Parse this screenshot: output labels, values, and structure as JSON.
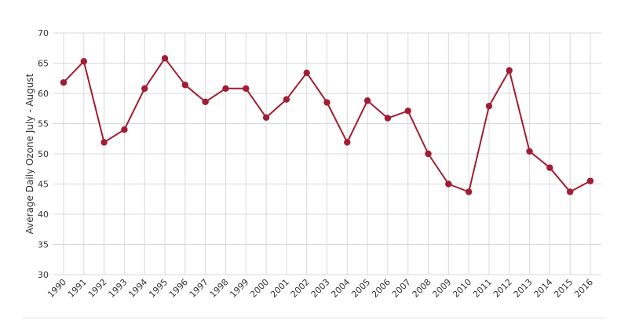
{
  "chart_data": {
    "type": "line",
    "title": "",
    "xlabel": "",
    "ylabel": "Average Daily Ozone July - August",
    "ylim": [
      30,
      70
    ],
    "yticks": [
      30,
      35,
      40,
      45,
      50,
      55,
      60,
      65,
      70
    ],
    "grid": "both",
    "categories": [
      "1990",
      "1991",
      "1992",
      "1993",
      "1994",
      "1995",
      "1996",
      "1997",
      "1998",
      "1999",
      "2000",
      "2001",
      "2002",
      "2003",
      "2004",
      "2005",
      "2006",
      "2007",
      "2008",
      "2009",
      "2010",
      "2011",
      "2012",
      "2013",
      "2014",
      "2015",
      "2016"
    ],
    "series": [
      {
        "values": [
          61.8,
          65.3,
          51.9,
          54.0,
          60.8,
          65.8,
          61.4,
          58.6,
          60.8,
          60.8,
          56.0,
          59.0,
          63.4,
          58.5,
          51.9,
          58.8,
          55.9,
          57.1,
          50.0,
          45.0,
          43.7,
          57.9,
          63.8,
          50.4,
          47.7,
          43.7,
          45.5
        ],
        "color": "#a11d33"
      }
    ]
  }
}
